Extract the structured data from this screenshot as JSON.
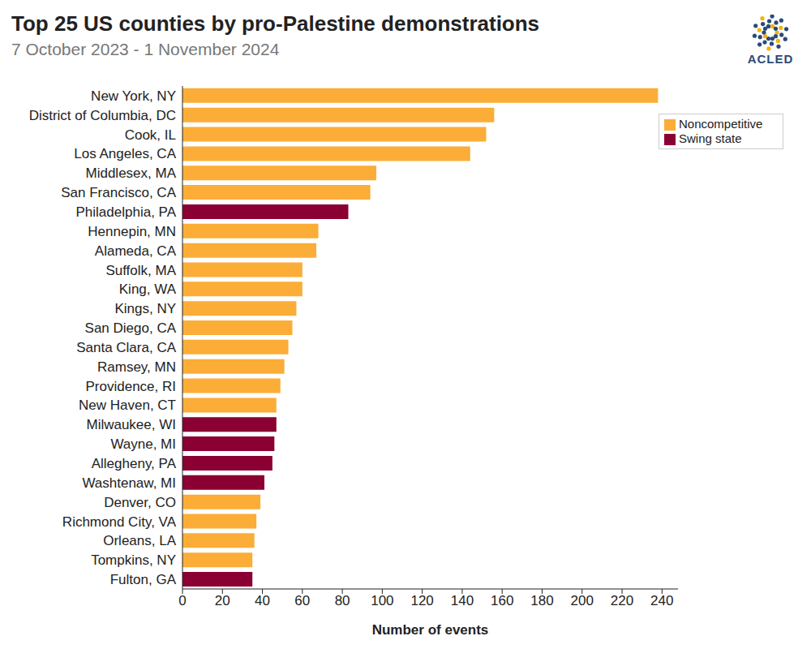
{
  "chart_data": {
    "type": "bar",
    "title": "Top 25 US counties by pro-Palestine demonstrations",
    "subtitle": "7 October 2023 - 1 November 2024",
    "source": "ACLED",
    "orientation": "horizontal",
    "stacked": true,
    "legend": "top right",
    "grid": false,
    "x_label": "Number of events",
    "categories": [
      "New York, NY",
      "District of Columbia, DC",
      "Cook, IL",
      "Los Angeles, CA",
      "Middlesex, MA",
      "San Francisco, CA",
      "Philadelphia, PA",
      "Hennepin, MN",
      "Alameda, CA",
      "Suffolk, MA",
      "King, WA",
      "Kings, NY",
      "San Diego, CA",
      "Santa Clara, CA",
      "Ramsey, MN",
      "Providence, RI",
      "New Haven, CT",
      "Milwaukee, WI",
      "Wayne, MI",
      "Allegheny, PA",
      "Washtenaw, MI",
      "Denver, CO",
      "Richmond City, VA",
      "Orleans, LA",
      "Tompkins, NY",
      "Fulton, GA"
    ],
    "series": [
      {
        "name": "Noncompetitive",
        "color": "#fbad37",
        "values": [
          238,
          156,
          152,
          144,
          97,
          94,
          null,
          68,
          67,
          60,
          60,
          57,
          55,
          53,
          51,
          49,
          47,
          null,
          null,
          null,
          null,
          39,
          37,
          36,
          35,
          null
        ]
      },
      {
        "name": "Swing state",
        "color": "#8b0033",
        "values": [
          null,
          null,
          null,
          null,
          null,
          null,
          83,
          null,
          null,
          null,
          null,
          null,
          null,
          null,
          null,
          null,
          null,
          47,
          46,
          45,
          41,
          null,
          null,
          null,
          null,
          35
        ]
      }
    ],
    "xlim": [
      0,
      248
    ],
    "xticks": [
      0,
      20,
      40,
      60,
      80,
      100,
      120,
      140,
      160,
      180,
      200,
      220,
      240
    ]
  }
}
